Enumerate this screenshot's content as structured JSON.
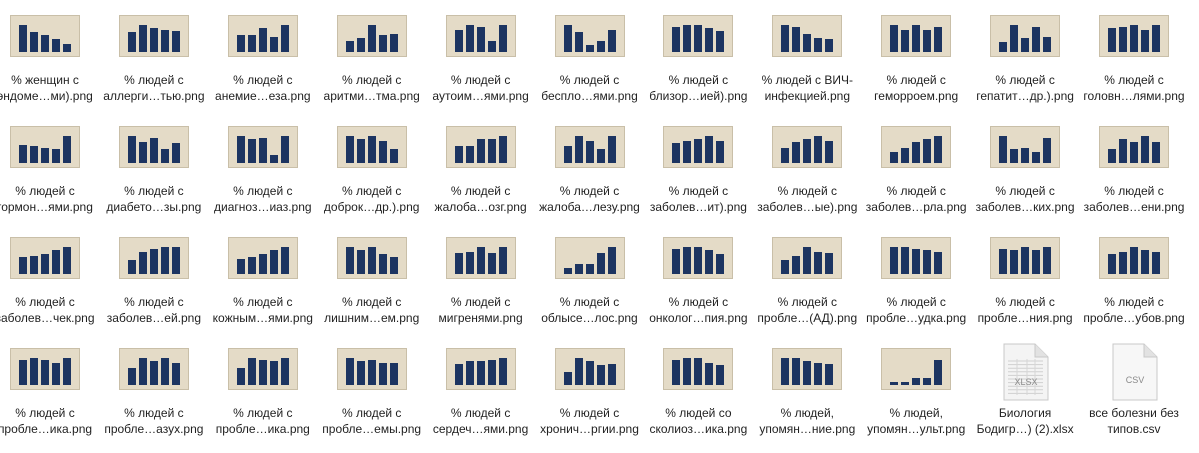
{
  "colors": {
    "bar": "#1c3461",
    "thumb_bg": "#e4dbc7",
    "text": "#222222"
  },
  "files": [
    {
      "line1": "% женщин с",
      "line2": "эндоме…ми).png",
      "type": "png",
      "bars": [
        0.95,
        0.7,
        0.6,
        0.45,
        0.3
      ]
    },
    {
      "line1": "% людей с",
      "line2": "аллерги…тью.png",
      "type": "png",
      "bars": [
        0.7,
        0.95,
        0.85,
        0.8,
        0.75
      ]
    },
    {
      "line1": "% людей с",
      "line2": "анемие…еза.png",
      "type": "png",
      "bars": [
        0.6,
        0.6,
        0.85,
        0.55,
        0.95
      ]
    },
    {
      "line1": "% людей с",
      "line2": "аритми…тма.png",
      "type": "png",
      "bars": [
        0.4,
        0.5,
        0.95,
        0.6,
        0.65
      ]
    },
    {
      "line1": "% людей с",
      "line2": "аутоим…ями.png",
      "type": "png",
      "bars": [
        0.8,
        0.95,
        0.9,
        0.4,
        0.95
      ]
    },
    {
      "line1": "% людей с",
      "line2": "беспло…ями.png",
      "type": "png",
      "bars": [
        0.95,
        0.7,
        0.25,
        0.4,
        0.8
      ]
    },
    {
      "line1": "% людей с",
      "line2": "близор…ией).png",
      "type": "png",
      "bars": [
        0.9,
        0.95,
        0.95,
        0.85,
        0.75
      ]
    },
    {
      "line1": "% людей с ВИЧ-",
      "line2": "инфекцией.png",
      "type": "png",
      "bars": [
        0.95,
        0.9,
        0.65,
        0.5,
        0.45
      ]
    },
    {
      "line1": "% людей с",
      "line2": "геморроем.png",
      "type": "png",
      "bars": [
        0.95,
        0.8,
        0.95,
        0.8,
        0.9
      ]
    },
    {
      "line1": "% людей с",
      "line2": "гепатит…др.).png",
      "type": "png",
      "bars": [
        0.35,
        0.95,
        0.5,
        0.9,
        0.55
      ]
    },
    {
      "line1": "% людей с",
      "line2": "головн…лями.png",
      "type": "png",
      "bars": [
        0.85,
        0.9,
        0.95,
        0.8,
        0.95
      ]
    },
    {
      "line1": "% людей с",
      "line2": "гормон…ями.png",
      "type": "png",
      "bars": [
        0.65,
        0.6,
        0.55,
        0.5,
        0.95
      ]
    },
    {
      "line1": "% людей с",
      "line2": "диабето…зы.png",
      "type": "png",
      "bars": [
        0.95,
        0.75,
        0.9,
        0.5,
        0.7
      ]
    },
    {
      "line1": "% людей с",
      "line2": "диагноз…иаз.png",
      "type": "png",
      "bars": [
        0.95,
        0.85,
        0.9,
        0.3,
        0.95
      ]
    },
    {
      "line1": "% людей с",
      "line2": "доброк…др.).png",
      "type": "png",
      "bars": [
        0.95,
        0.85,
        0.95,
        0.8,
        0.5
      ]
    },
    {
      "line1": "% людей с",
      "line2": "жалоба…озг.png",
      "type": "png",
      "bars": [
        0.6,
        0.6,
        0.85,
        0.85,
        0.95
      ]
    },
    {
      "line1": "% людей с",
      "line2": "жалоба…лезу.png",
      "type": "png",
      "bars": [
        0.6,
        0.95,
        0.8,
        0.5,
        0.95
      ]
    },
    {
      "line1": "% людей с",
      "line2": "заболев…ит).png",
      "type": "png",
      "bars": [
        0.7,
        0.8,
        0.85,
        0.95,
        0.8
      ]
    },
    {
      "line1": "% людей с",
      "line2": "заболев…ые).png",
      "type": "png",
      "bars": [
        0.55,
        0.75,
        0.85,
        0.95,
        0.8
      ]
    },
    {
      "line1": "% людей с",
      "line2": "заболев…рла.png",
      "type": "png",
      "bars": [
        0.4,
        0.55,
        0.75,
        0.85,
        0.95
      ]
    },
    {
      "line1": "% людей с",
      "line2": "заболев…ких.png",
      "type": "png",
      "bars": [
        0.95,
        0.5,
        0.55,
        0.4,
        0.9
      ]
    },
    {
      "line1": "% людей с",
      "line2": "заболев…ени.png",
      "type": "png",
      "bars": [
        0.5,
        0.85,
        0.75,
        0.95,
        0.75
      ]
    },
    {
      "line1": "% людей с",
      "line2": "заболев…чек.png",
      "type": "png",
      "bars": [
        0.6,
        0.65,
        0.7,
        0.85,
        0.95
      ]
    },
    {
      "line1": "% людей с",
      "line2": "заболев…ей.png",
      "type": "png",
      "bars": [
        0.5,
        0.8,
        0.9,
        0.95,
        0.95
      ]
    },
    {
      "line1": "% людей с",
      "line2": "кожным…ями.png",
      "type": "png",
      "bars": [
        0.55,
        0.6,
        0.7,
        0.85,
        0.95
      ]
    },
    {
      "line1": "% людей с",
      "line2": "лишним…ем.png",
      "type": "png",
      "bars": [
        0.95,
        0.85,
        0.95,
        0.7,
        0.6
      ]
    },
    {
      "line1": "% людей с",
      "line2": "мигренями.png",
      "type": "png",
      "bars": [
        0.75,
        0.8,
        0.95,
        0.75,
        0.95
      ]
    },
    {
      "line1": "% людей с",
      "line2": "облысе…лос.png",
      "type": "png",
      "bars": [
        0.2,
        0.35,
        0.35,
        0.75,
        0.95
      ]
    },
    {
      "line1": "% людей с",
      "line2": "онколог…пия.png",
      "type": "png",
      "bars": [
        0.9,
        0.95,
        0.95,
        0.85,
        0.7
      ]
    },
    {
      "line1": "% людей с",
      "line2": "пробле…(АД).png",
      "type": "png",
      "bars": [
        0.5,
        0.65,
        0.95,
        0.8,
        0.75
      ]
    },
    {
      "line1": "% людей с",
      "line2": "пробле…удка.png",
      "type": "png",
      "bars": [
        0.95,
        0.95,
        0.9,
        0.85,
        0.8
      ]
    },
    {
      "line1": "% людей с",
      "line2": "пробле…ния.png",
      "type": "png",
      "bars": [
        0.9,
        0.85,
        0.95,
        0.85,
        0.95
      ]
    },
    {
      "line1": "% людей с",
      "line2": "пробле…убов.png",
      "type": "png",
      "bars": [
        0.7,
        0.8,
        0.95,
        0.85,
        0.8
      ]
    },
    {
      "line1": "% людей с",
      "line2": "пробле…ика.png",
      "type": "png",
      "bars": [
        0.9,
        0.95,
        0.9,
        0.8,
        0.95
      ]
    },
    {
      "line1": "% людей с",
      "line2": "пробле…азух.png",
      "type": "png",
      "bars": [
        0.6,
        0.95,
        0.85,
        0.95,
        0.8
      ]
    },
    {
      "line1": "% людей с",
      "line2": "пробле…ика.png",
      "type": "png",
      "bars": [
        0.6,
        0.95,
        0.9,
        0.85,
        0.95
      ]
    },
    {
      "line1": "% людей с",
      "line2": "пробле…емы.png",
      "type": "png",
      "bars": [
        0.95,
        0.85,
        0.9,
        0.8,
        0.8
      ]
    },
    {
      "line1": "% людей с",
      "line2": "сердеч…ями.png",
      "type": "png",
      "bars": [
        0.75,
        0.85,
        0.85,
        0.9,
        0.95
      ]
    },
    {
      "line1": "% людей с",
      "line2": "хронич…ргии.png",
      "type": "png",
      "bars": [
        0.45,
        0.95,
        0.85,
        0.7,
        0.75
      ]
    },
    {
      "line1": "% людей со",
      "line2": "сколиоз…ика.png",
      "type": "png",
      "bars": [
        0.9,
        0.95,
        0.95,
        0.8,
        0.7
      ]
    },
    {
      "line1": "% людей,",
      "line2": "упомян…ние.png",
      "type": "png",
      "bars": [
        0.95,
        0.95,
        0.85,
        0.8,
        0.75
      ]
    },
    {
      "line1": "% людей,",
      "line2": "упомян…ульт.png",
      "type": "png",
      "bars": [
        0.1,
        0.1,
        0.25,
        0.25,
        0.9
      ]
    },
    {
      "line1": "Биология",
      "line2": "Бодигр…) (2).xlsx",
      "type": "xlsx",
      "badge": "XLSX"
    },
    {
      "line1": "все болезни без",
      "line2": "типов.csv",
      "type": "csv",
      "badge": "CSV"
    }
  ]
}
